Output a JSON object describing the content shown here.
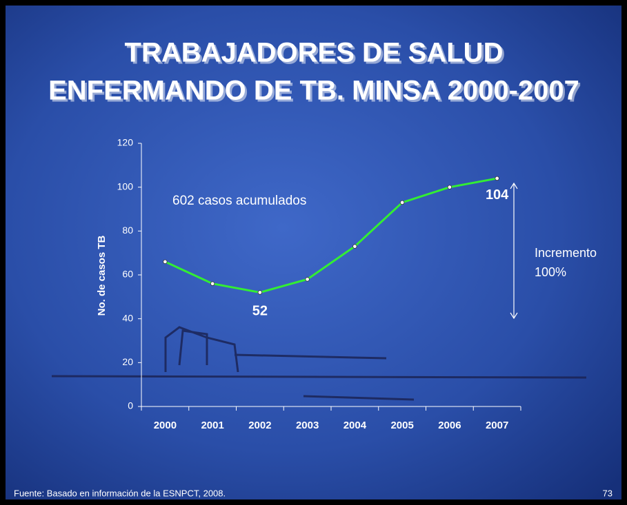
{
  "chart_data": {
    "type": "line",
    "title": [
      "TRABAJADORES DE SALUD",
      "ENFERMANDO DE TB. MINSA 2000-2007"
    ],
    "y_label": "No. de casos TB",
    "categories": [
      "2000",
      "2001",
      "2002",
      "2003",
      "2004",
      "2005",
      "2006",
      "2007"
    ],
    "values": [
      66,
      56,
      52,
      58,
      73,
      93,
      100,
      104
    ],
    "value_labels": [
      null,
      null,
      "52",
      null,
      null,
      null,
      null,
      "104"
    ],
    "color": "#33ee33",
    "ylim": [
      0,
      120
    ],
    "yticks": [
      0,
      20,
      40,
      60,
      80,
      100,
      120
    ],
    "grid": false,
    "annotations": [
      "602 casos acumulados",
      "Incremento",
      "100%"
    ],
    "source": "Fuente: Basado en información de la ESNPCT, 2008.",
    "page_number": "73"
  }
}
